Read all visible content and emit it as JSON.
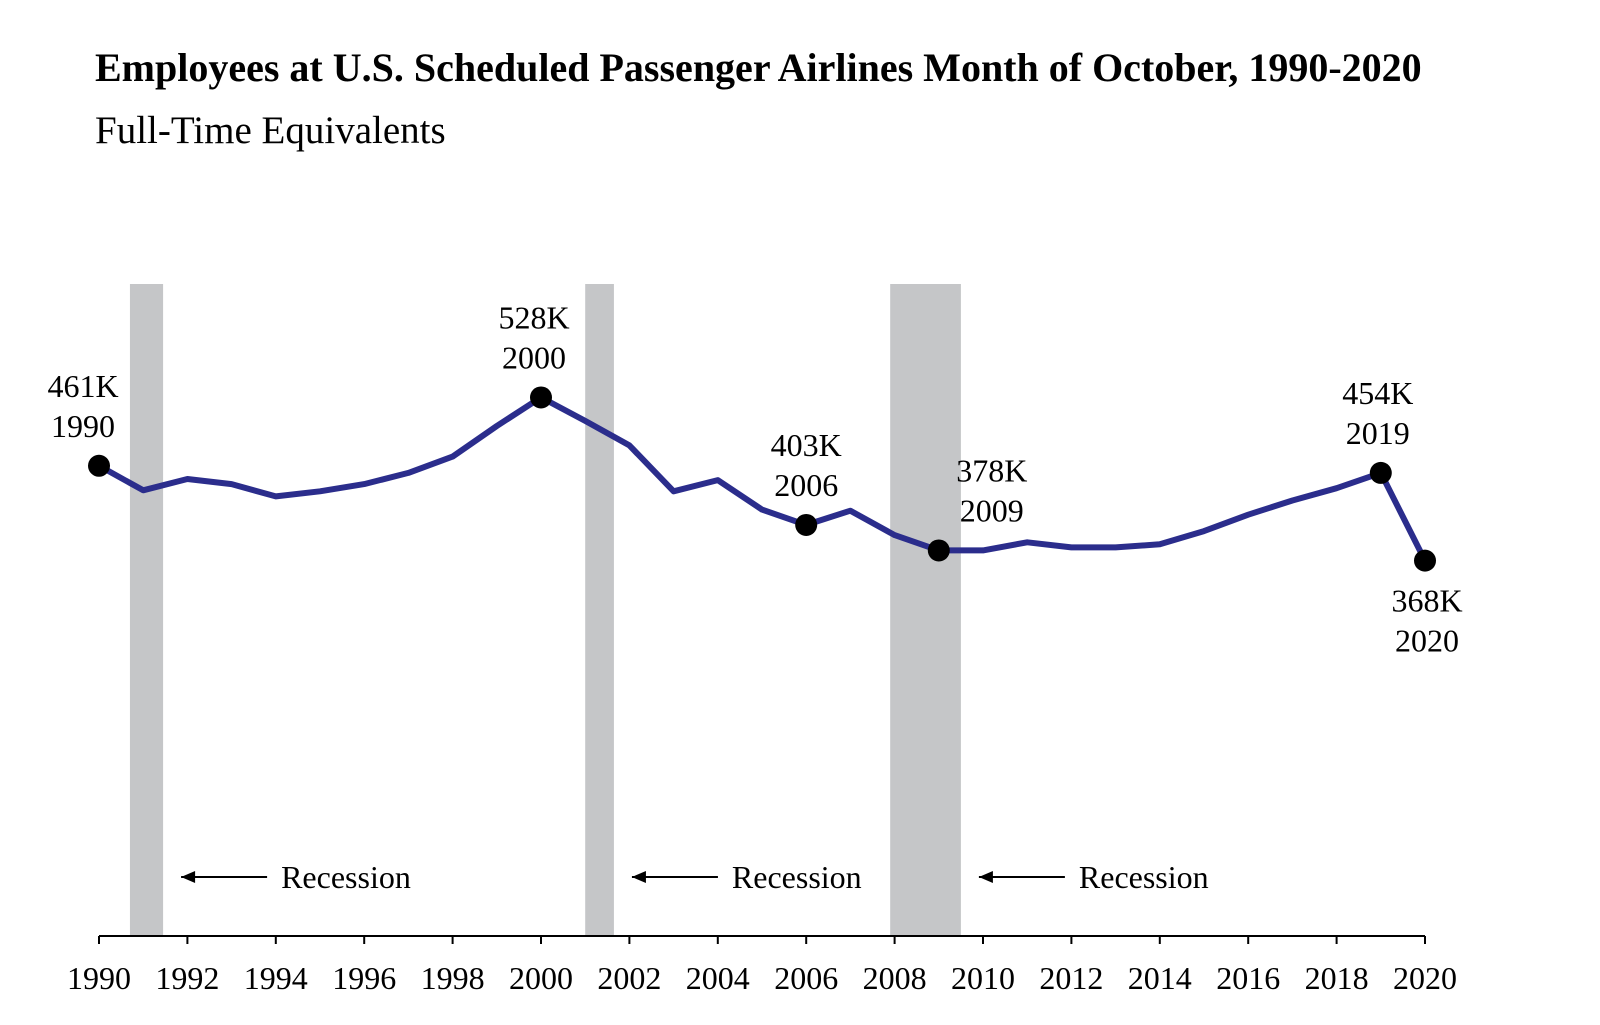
{
  "chart_data": {
    "type": "line",
    "title": "Employees at U.S. Scheduled Passenger Airlines Month of October, 1990-2020",
    "subtitle": "Full-Time Equivalents",
    "xlabel": "",
    "ylabel": "",
    "grid": false,
    "legend": "none",
    "xlim": [
      1990,
      2020
    ],
    "ylim": [
      0,
      660
    ],
    "x_ticks": [
      1990,
      1992,
      1994,
      1996,
      1998,
      2000,
      2002,
      2004,
      2006,
      2008,
      2010,
      2012,
      2014,
      2016,
      2018,
      2020
    ],
    "x_tick_labels": [
      "1990",
      "1992",
      "1994",
      "1996",
      "1998",
      "2000",
      "2002",
      "2004",
      "2006",
      "2008",
      "2010",
      "2012",
      "2014",
      "2016",
      "2018",
      "2020"
    ],
    "series": [
      {
        "color": "#2b2d8c",
        "x": [
          1990,
          1991,
          1992,
          1993,
          1994,
          1995,
          1996,
          1997,
          1998,
          1999,
          2000,
          2001,
          2002,
          2003,
          2004,
          2005,
          2006,
          2007,
          2008,
          2009,
          2010,
          2011,
          2012,
          2013,
          2014,
          2015,
          2016,
          2017,
          2018,
          2019,
          2020
        ],
        "y": [
          461,
          437,
          448,
          443,
          431,
          436,
          443,
          454,
          470,
          500,
          528,
          505,
          481,
          436,
          447,
          418,
          403,
          417,
          393,
          378,
          378,
          386,
          381,
          381,
          384,
          397,
          413,
          427,
          439,
          454,
          368
        ]
      }
    ],
    "highlighted_points": [
      {
        "x": 1990,
        "y": 461,
        "value_label": "461K",
        "year_label": "1990"
      },
      {
        "x": 2000,
        "y": 528,
        "value_label": "528K",
        "year_label": "2000"
      },
      {
        "x": 2006,
        "y": 403,
        "value_label": "403K",
        "year_label": "2006"
      },
      {
        "x": 2009,
        "y": 378,
        "value_label": "378K",
        "year_label": "2009"
      },
      {
        "x": 2019,
        "y": 454,
        "value_label": "454K",
        "year_label": "2019"
      },
      {
        "x": 2020,
        "y": 368,
        "value_label": "368K",
        "year_label": "2020"
      }
    ],
    "recessions": [
      {
        "start": 1990.7,
        "end": 1991.45,
        "label": "Recession"
      },
      {
        "start": 2001.0,
        "end": 2001.65,
        "label": "Recession"
      },
      {
        "start": 2007.9,
        "end": 2009.5,
        "label": "Recession"
      }
    ],
    "colors": {
      "line": "#2b2d8c",
      "recession": "#c5c6c8",
      "marker": "#000000"
    }
  }
}
